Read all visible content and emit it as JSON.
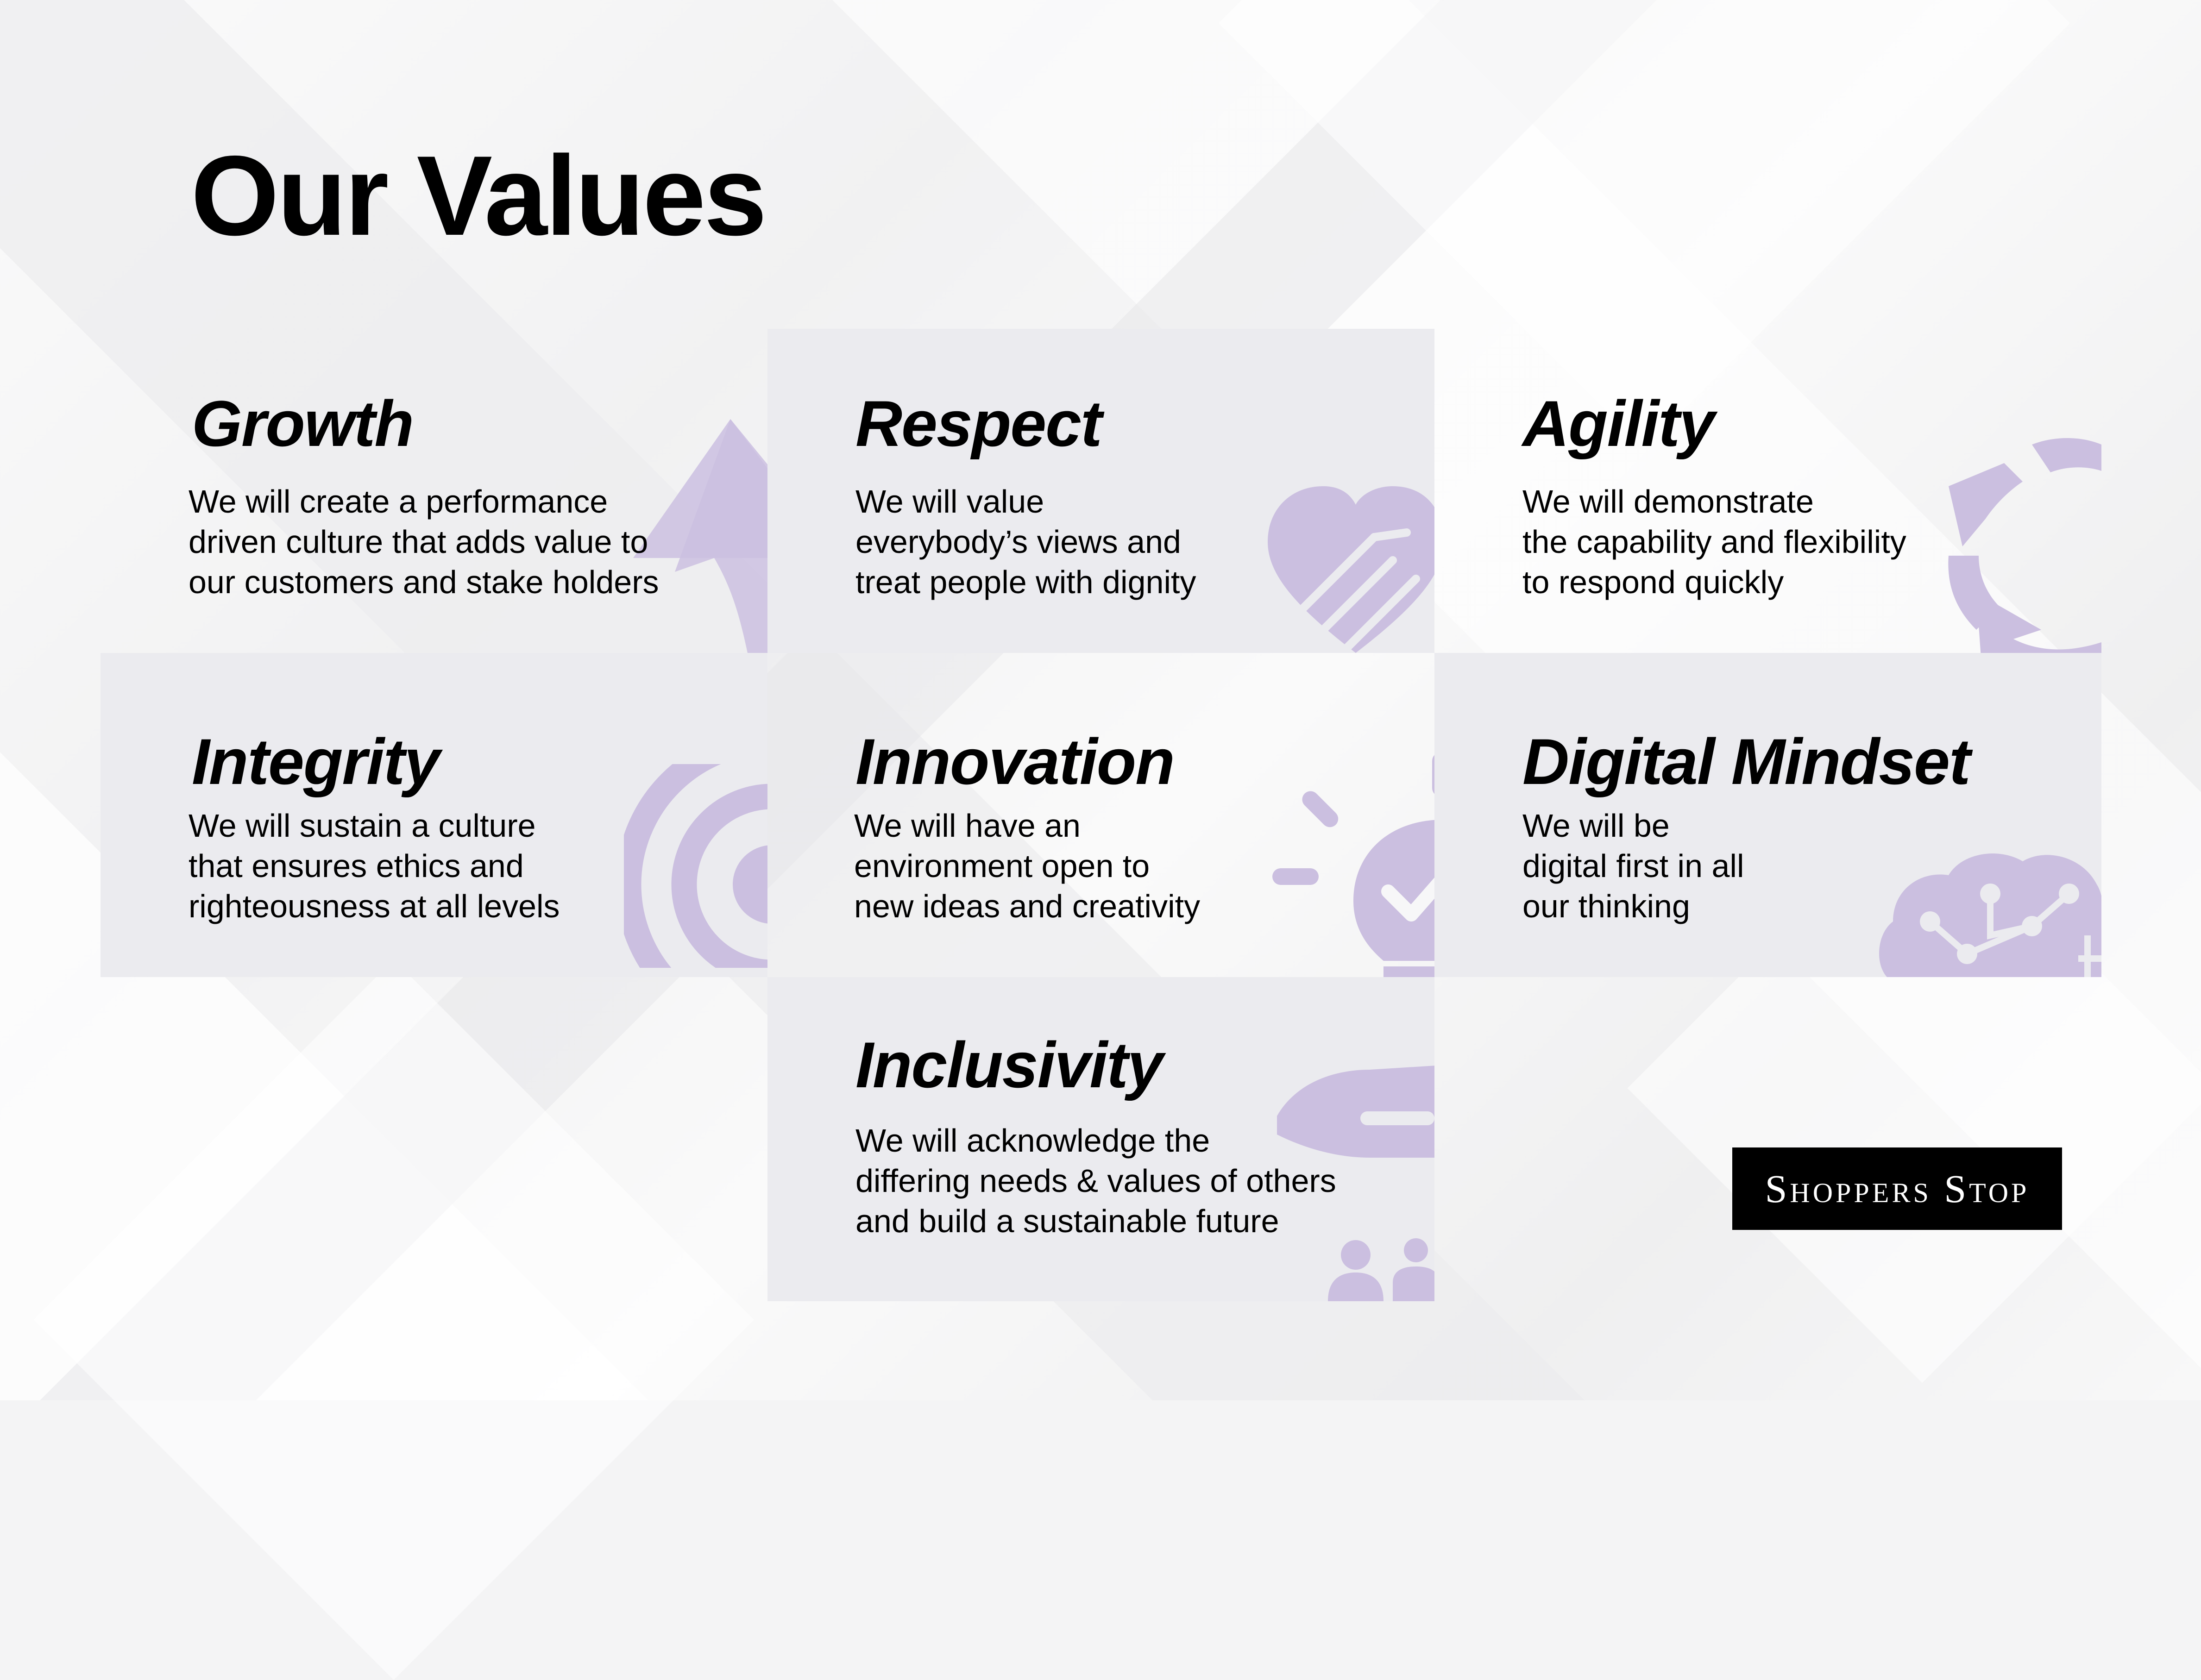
{
  "page": {
    "title": "Our Values"
  },
  "values": [
    {
      "name": "Growth",
      "description": "We will create a performance\ndriven culture that adds value to\nour customers and stake holders",
      "icon": "arrow-up-icon"
    },
    {
      "name": "Respect",
      "description": "We will value\neverybody’s views and\ntreat people with dignity",
      "icon": "heart-handshake-icon"
    },
    {
      "name": "Agility",
      "description": "We will demonstrate\nthe capability and flexibility\nto respond quickly",
      "icon": "circular-arrows-icon"
    },
    {
      "name": "Integrity",
      "description": "We will sustain a culture\nthat ensures ethics and\nrighteousness at all levels",
      "icon": "target-icon"
    },
    {
      "name": "Innovation",
      "description": "We will have an\nenvironment open to\nnew ideas and creativity",
      "icon": "lightbulb-check-icon"
    },
    {
      "name": "Digital Mindset",
      "description": "We will be\ndigital first in all\nour thinking",
      "icon": "circuit-brain-icon"
    },
    {
      "name": "Inclusivity",
      "description": "We will acknowledge the\ndiffering needs & values of others\nand build a sustainable future",
      "icon": "hand-people-icon"
    }
  ],
  "brand": {
    "logo_text": "Shoppers Stop"
  },
  "colors": {
    "icon_lilac": "#cbbfe0",
    "card_shade": "#ebebef",
    "text": "#000000",
    "logo_bg": "#000000"
  }
}
